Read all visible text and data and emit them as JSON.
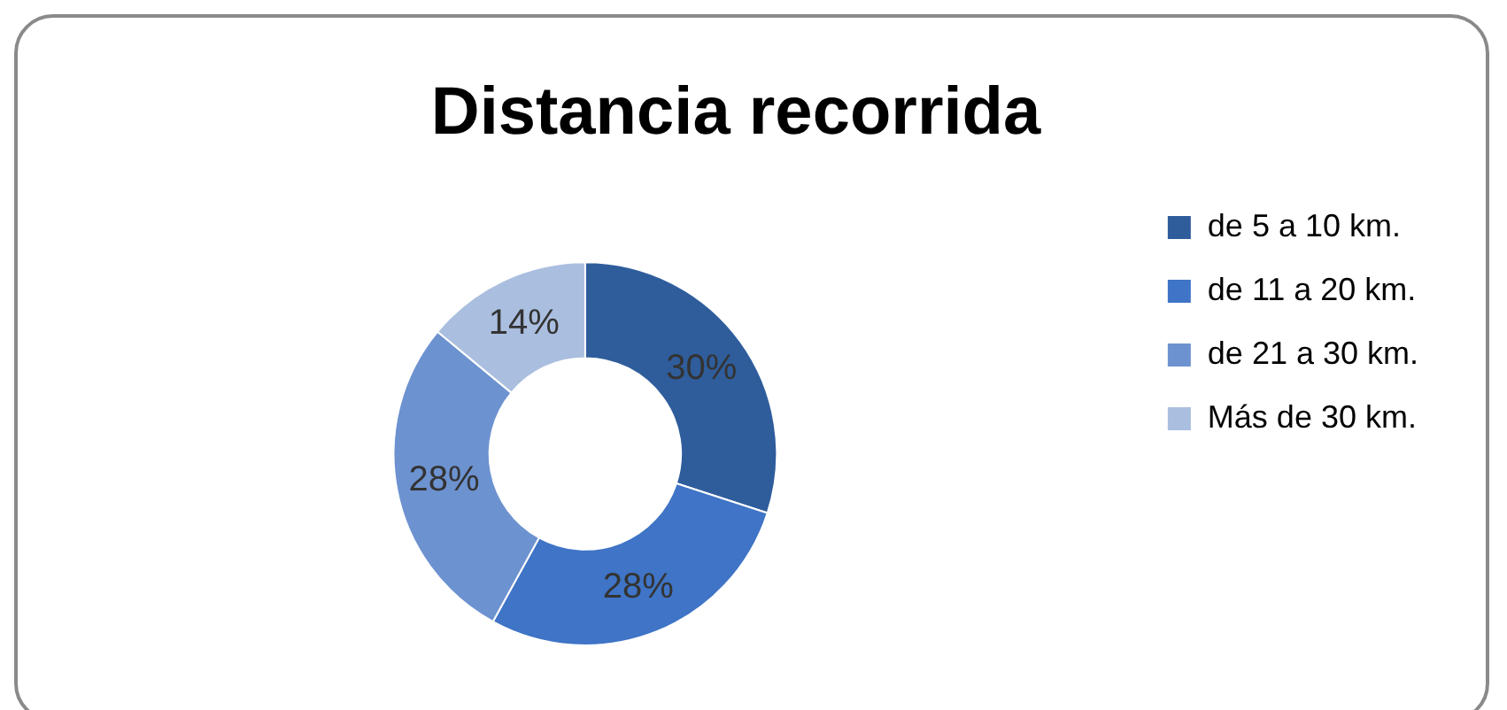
{
  "chart_data": {
    "type": "donut",
    "title": "Distancia recorrida",
    "categories": [
      "de 5 a 10 km.",
      "de 11 a 20 km.",
      "de 21 a 30 km.",
      "Más de 30 km."
    ],
    "values": [
      30,
      28,
      28,
      14
    ],
    "colors": [
      "#2f5d9c",
      "#3f74c6",
      "#6d92d0",
      "#aabedf"
    ],
    "value_labels": [
      "30%",
      "28%",
      "28%",
      "14%"
    ],
    "legend": "right"
  }
}
